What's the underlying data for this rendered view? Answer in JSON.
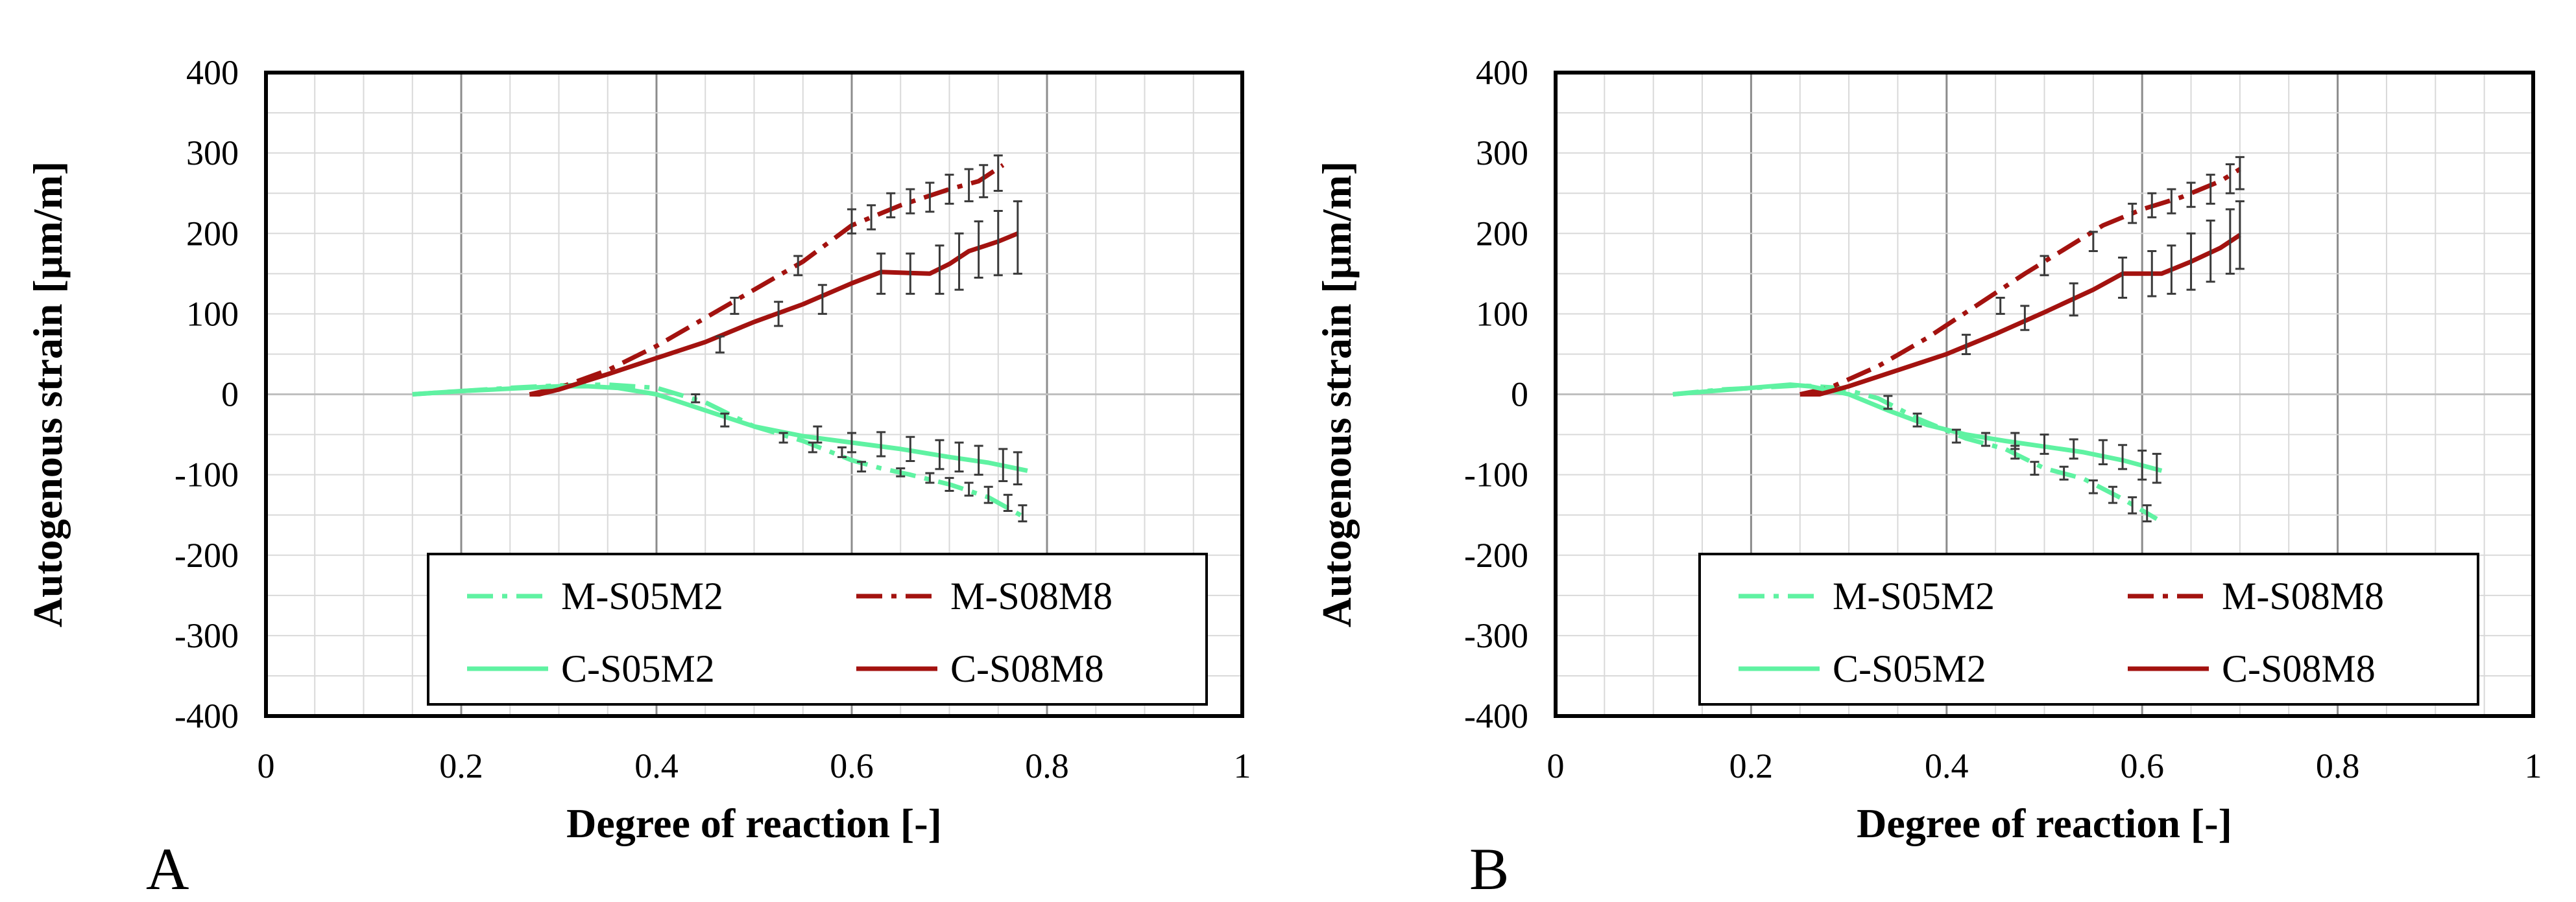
{
  "colors": {
    "green": "#5ff2a2",
    "darkred": "#a3120f",
    "errorbar": "#3a3a3a"
  },
  "legend": {
    "entries": [
      {
        "label": "M-S05M2",
        "color": "#5ff2a2",
        "dash": "dashdot"
      },
      {
        "label": "M-S08M8",
        "color": "#a3120f",
        "dash": "dashdot"
      },
      {
        "label": "C-S05M2",
        "color": "#5ff2a2",
        "dash": "solid"
      },
      {
        "label": "C-S08M8",
        "color": "#a3120f",
        "dash": "solid"
      }
    ]
  },
  "chart_data": [
    {
      "panel_label": "A",
      "type": "line",
      "xlabel": "Degree of reaction [-]",
      "ylabel": "Autogenous strain [µm/m]",
      "xlim": [
        0,
        1
      ],
      "ylim": [
        -400,
        400
      ],
      "xticks": [
        "0",
        "0.2",
        "0.4",
        "0.6",
        "0.8",
        "1"
      ],
      "yticks": [
        "400",
        "300",
        "200",
        "100",
        "0",
        "-100",
        "-200",
        "-300",
        "-400"
      ],
      "grid": true,
      "series": [
        {
          "name": "M-S05M2",
          "color": "#5ff2a2",
          "dash": "dashdot",
          "points": [
            [
              0.15,
              0
            ],
            [
              0.2,
              4
            ],
            [
              0.25,
              8
            ],
            [
              0.3,
              11
            ],
            [
              0.35,
              12
            ],
            [
              0.4,
              8
            ],
            [
              0.45,
              -10
            ],
            [
              0.5,
              -40
            ],
            [
              0.55,
              -58
            ],
            [
              0.6,
              -82
            ],
            [
              0.63,
              -92
            ],
            [
              0.66,
              -100
            ],
            [
              0.7,
              -112
            ],
            [
              0.74,
              -128
            ],
            [
              0.78,
              -155
            ]
          ],
          "errorbars": [
            [
              0.44,
              -5,
              5
            ],
            [
              0.47,
              -32,
              8
            ],
            [
              0.53,
              -54,
              6
            ],
            [
              0.56,
              -66,
              6
            ],
            [
              0.59,
              -72,
              6
            ],
            [
              0.61,
              -90,
              6
            ],
            [
              0.65,
              -97,
              5
            ],
            [
              0.68,
              -104,
              6
            ],
            [
              0.7,
              -112,
              8
            ],
            [
              0.72,
              -118,
              8
            ],
            [
              0.74,
              -125,
              10
            ],
            [
              0.76,
              -135,
              10
            ],
            [
              0.775,
              -148,
              10
            ]
          ]
        },
        {
          "name": "M-S08M8",
          "color": "#a3120f",
          "dash": "dashdot",
          "points": [
            [
              0.27,
              0
            ],
            [
              0.3,
              8
            ],
            [
              0.35,
              30
            ],
            [
              0.4,
              60
            ],
            [
              0.45,
              95
            ],
            [
              0.5,
              130
            ],
            [
              0.55,
              165
            ],
            [
              0.6,
              210
            ],
            [
              0.65,
              235
            ],
            [
              0.7,
              255
            ],
            [
              0.73,
              265
            ],
            [
              0.755,
              285
            ]
          ],
          "errorbars": [
            [
              0.48,
              110,
              10
            ],
            [
              0.545,
              160,
              12
            ],
            [
              0.6,
              215,
              15
            ],
            [
              0.62,
              220,
              15
            ],
            [
              0.64,
              235,
              15
            ],
            [
              0.66,
              240,
              15
            ],
            [
              0.68,
              245,
              18
            ],
            [
              0.7,
              255,
              18
            ],
            [
              0.72,
              260,
              20
            ],
            [
              0.735,
              265,
              20
            ],
            [
              0.75,
              275,
              22
            ]
          ]
        },
        {
          "name": "C-S05M2",
          "color": "#5ff2a2",
          "dash": "solid",
          "points": [
            [
              0.15,
              0
            ],
            [
              0.2,
              4
            ],
            [
              0.25,
              7
            ],
            [
              0.3,
              10
            ],
            [
              0.33,
              10
            ],
            [
              0.36,
              8
            ],
            [
              0.4,
              0
            ],
            [
              0.45,
              -20
            ],
            [
              0.5,
              -40
            ],
            [
              0.55,
              -52
            ],
            [
              0.6,
              -60
            ],
            [
              0.65,
              -68
            ],
            [
              0.7,
              -78
            ],
            [
              0.74,
              -85
            ],
            [
              0.78,
              -95
            ]
          ],
          "errorbars": [
            [
              0.565,
              -50,
              10
            ],
            [
              0.6,
              -60,
              12
            ],
            [
              0.63,
              -62,
              15
            ],
            [
              0.66,
              -68,
              15
            ],
            [
              0.69,
              -75,
              18
            ],
            [
              0.71,
              -78,
              18
            ],
            [
              0.73,
              -82,
              18
            ],
            [
              0.755,
              -88,
              20
            ],
            [
              0.77,
              -92,
              20
            ]
          ]
        },
        {
          "name": "C-S08M8",
          "color": "#a3120f",
          "dash": "solid",
          "points": [
            [
              0.27,
              0
            ],
            [
              0.28,
              0
            ],
            [
              0.3,
              6
            ],
            [
              0.35,
              25
            ],
            [
              0.4,
              45
            ],
            [
              0.45,
              65
            ],
            [
              0.5,
              90
            ],
            [
              0.55,
              112
            ],
            [
              0.6,
              138
            ],
            [
              0.63,
              152
            ],
            [
              0.68,
              150
            ],
            [
              0.7,
              162
            ],
            [
              0.72,
              178
            ],
            [
              0.75,
              190
            ],
            [
              0.77,
              200
            ]
          ],
          "errorbars": [
            [
              0.465,
              62,
              10
            ],
            [
              0.525,
              100,
              15
            ],
            [
              0.57,
              118,
              18
            ],
            [
              0.63,
              150,
              25
            ],
            [
              0.66,
              150,
              25
            ],
            [
              0.69,
              155,
              30
            ],
            [
              0.71,
              165,
              35
            ],
            [
              0.73,
              180,
              35
            ],
            [
              0.75,
              188,
              40
            ],
            [
              0.77,
              195,
              45
            ]
          ]
        }
      ]
    },
    {
      "panel_label": "B",
      "type": "line",
      "xlabel": "Degree of reaction [-]",
      "ylabel": "Autogenous strain [µm/m]",
      "xlim": [
        0,
        1
      ],
      "ylim": [
        -400,
        400
      ],
      "xticks": [
        "0",
        "0.2",
        "0.4",
        "0.6",
        "0.8",
        "1"
      ],
      "yticks": [
        "400",
        "300",
        "200",
        "100",
        "0",
        "-100",
        "-200",
        "-300",
        "-400"
      ],
      "grid": true,
      "series": [
        {
          "name": "M-S05M2",
          "color": "#5ff2a2",
          "dash": "dashdot",
          "points": [
            [
              0.12,
              0
            ],
            [
              0.17,
              6
            ],
            [
              0.22,
              9
            ],
            [
              0.25,
              11
            ],
            [
              0.29,
              8
            ],
            [
              0.33,
              -5
            ],
            [
              0.37,
              -30
            ],
            [
              0.42,
              -55
            ],
            [
              0.46,
              -68
            ],
            [
              0.5,
              -92
            ],
            [
              0.54,
              -105
            ],
            [
              0.58,
              -130
            ],
            [
              0.615,
              -155
            ]
          ],
          "errorbars": [
            [
              0.34,
              -10,
              8
            ],
            [
              0.37,
              -32,
              8
            ],
            [
              0.41,
              -52,
              8
            ],
            [
              0.44,
              -56,
              8
            ],
            [
              0.47,
              -72,
              8
            ],
            [
              0.49,
              -92,
              8
            ],
            [
              0.52,
              -98,
              8
            ],
            [
              0.55,
              -115,
              8
            ],
            [
              0.57,
              -125,
              10
            ],
            [
              0.59,
              -138,
              10
            ],
            [
              0.605,
              -148,
              10
            ]
          ]
        },
        {
          "name": "M-S08M8",
          "color": "#a3120f",
          "dash": "dashdot",
          "points": [
            [
              0.25,
              0
            ],
            [
              0.28,
              8
            ],
            [
              0.33,
              35
            ],
            [
              0.38,
              70
            ],
            [
              0.43,
              110
            ],
            [
              0.48,
              150
            ],
            [
              0.52,
              180
            ],
            [
              0.56,
              210
            ],
            [
              0.6,
              230
            ],
            [
              0.64,
              245
            ],
            [
              0.68,
              265
            ],
            [
              0.7,
              280
            ]
          ],
          "errorbars": [
            [
              0.455,
              110,
              10
            ],
            [
              0.5,
              160,
              12
            ],
            [
              0.55,
              190,
              12
            ],
            [
              0.59,
              225,
              12
            ],
            [
              0.61,
              235,
              15
            ],
            [
              0.63,
              240,
              15
            ],
            [
              0.65,
              248,
              15
            ],
            [
              0.67,
              255,
              18
            ],
            [
              0.69,
              268,
              18
            ],
            [
              0.7,
              275,
              20
            ]
          ]
        },
        {
          "name": "C-S05M2",
          "color": "#5ff2a2",
          "dash": "solid",
          "points": [
            [
              0.12,
              0
            ],
            [
              0.17,
              5
            ],
            [
              0.22,
              10
            ],
            [
              0.24,
              12
            ],
            [
              0.26,
              10
            ],
            [
              0.3,
              0
            ],
            [
              0.34,
              -20
            ],
            [
              0.38,
              -38
            ],
            [
              0.42,
              -50
            ],
            [
              0.46,
              -58
            ],
            [
              0.5,
              -65
            ],
            [
              0.54,
              -72
            ],
            [
              0.58,
              -82
            ],
            [
              0.62,
              -95
            ]
          ],
          "errorbars": [
            [
              0.47,
              -58,
              10
            ],
            [
              0.5,
              -62,
              12
            ],
            [
              0.53,
              -68,
              12
            ],
            [
              0.56,
              -72,
              15
            ],
            [
              0.58,
              -78,
              15
            ],
            [
              0.6,
              -88,
              18
            ],
            [
              0.615,
              -92,
              18
            ]
          ]
        },
        {
          "name": "C-S08M8",
          "color": "#a3120f",
          "dash": "solid",
          "points": [
            [
              0.25,
              0
            ],
            [
              0.27,
              0
            ],
            [
              0.3,
              10
            ],
            [
              0.35,
              30
            ],
            [
              0.4,
              50
            ],
            [
              0.45,
              75
            ],
            [
              0.5,
              102
            ],
            [
              0.55,
              130
            ],
            [
              0.58,
              150
            ],
            [
              0.62,
              150
            ],
            [
              0.65,
              165
            ],
            [
              0.68,
              182
            ],
            [
              0.7,
              198
            ]
          ],
          "errorbars": [
            [
              0.42,
              62,
              12
            ],
            [
              0.48,
              95,
              15
            ],
            [
              0.53,
              118,
              20
            ],
            [
              0.58,
              145,
              25
            ],
            [
              0.61,
              150,
              28
            ],
            [
              0.63,
              155,
              30
            ],
            [
              0.65,
              165,
              35
            ],
            [
              0.67,
              178,
              38
            ],
            [
              0.69,
              190,
              40
            ],
            [
              0.7,
              198,
              42
            ]
          ]
        }
      ]
    }
  ]
}
